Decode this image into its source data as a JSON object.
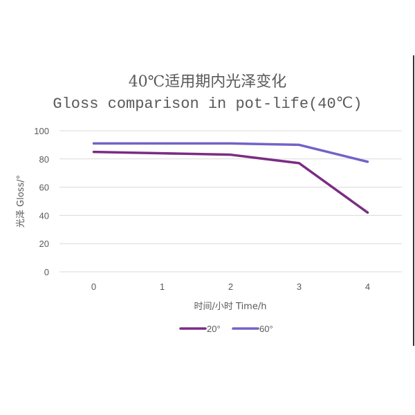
{
  "chart_data": {
    "type": "line",
    "title": "40℃适用期内光泽变化",
    "subtitle": "Gloss comparison in pot-life(40℃)",
    "xlabel": "时间/小时  Time/h",
    "ylabel": "光泽 Gloss/°",
    "x": [
      0,
      1,
      2,
      3,
      4
    ],
    "x_tick_labels": [
      "0",
      "1",
      "2",
      "3",
      "4"
    ],
    "y_tick_labels": [
      "0",
      "20",
      "40",
      "60",
      "80",
      "100"
    ],
    "ylim": [
      0,
      100
    ],
    "grid": true,
    "legend_position": "bottom",
    "series": [
      {
        "name": "20°",
        "color": "#7B2C83",
        "values": [
          85,
          84,
          83,
          77,
          42
        ]
      },
      {
        "name": "60°",
        "color": "#7163C8",
        "values": [
          91,
          91,
          91,
          90,
          78
        ]
      }
    ]
  },
  "legend": {
    "items": [
      "20°",
      "60°"
    ]
  }
}
